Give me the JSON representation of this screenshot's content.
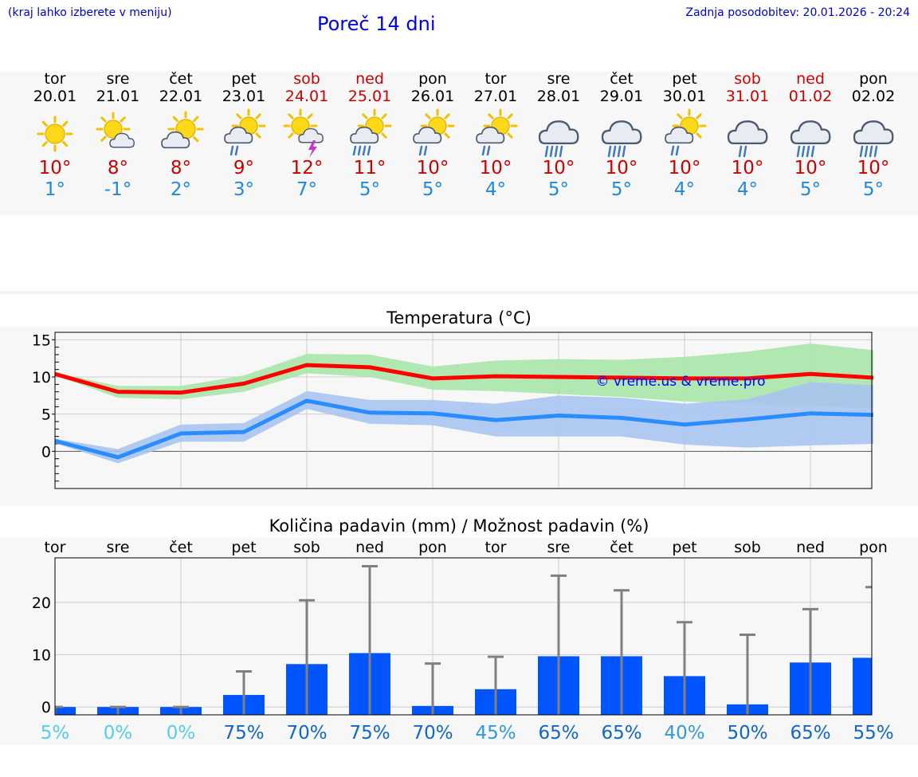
{
  "header": {
    "hint": "(kraj lahko izberete v meniju)",
    "title": "Poreč 14 dni",
    "updated": "Zadnja posodobitev: 20.01.2026 - 20:24"
  },
  "colors": {
    "max_temp": "#cc0000",
    "min_temp": "#2288dd",
    "weekend": "#cc0000",
    "bar": "#0055ff",
    "errbar": "#808080",
    "max_band": "#a8e6a8",
    "min_band": "#a9c4f0",
    "max_line": "#ff0000",
    "min_line": "#2a8cff"
  },
  "forecast": [
    {
      "dow": "tor",
      "date": "20.01",
      "weekend": false,
      "icon": "sunny-icon",
      "tmax": "10°",
      "tmin": "1°"
    },
    {
      "dow": "sre",
      "date": "21.01",
      "weekend": false,
      "icon": "sun-cloud-icon",
      "tmax": "8°",
      "tmin": "-1°"
    },
    {
      "dow": "čet",
      "date": "22.01",
      "weekend": false,
      "icon": "cloud-sun-icon",
      "tmax": "8°",
      "tmin": "2°"
    },
    {
      "dow": "pet",
      "date": "23.01",
      "weekend": false,
      "icon": "sun-cloud-rain-icon",
      "tmax": "9°",
      "tmin": "3°"
    },
    {
      "dow": "sob",
      "date": "24.01",
      "weekend": true,
      "icon": "sun-cloud-thunder-icon",
      "tmax": "12°",
      "tmin": "7°"
    },
    {
      "dow": "ned",
      "date": "25.01",
      "weekend": true,
      "icon": "sun-cloud-heavy-rain-icon",
      "tmax": "11°",
      "tmin": "5°"
    },
    {
      "dow": "pon",
      "date": "26.01",
      "weekend": false,
      "icon": "sun-cloud-rain-icon",
      "tmax": "10°",
      "tmin": "5°"
    },
    {
      "dow": "tor",
      "date": "27.01",
      "weekend": false,
      "icon": "sun-cloud-rain-icon",
      "tmax": "10°",
      "tmin": "4°"
    },
    {
      "dow": "sre",
      "date": "28.01",
      "weekend": false,
      "icon": "cloud-heavy-rain-icon",
      "tmax": "10°",
      "tmin": "5°"
    },
    {
      "dow": "čet",
      "date": "29.01",
      "weekend": false,
      "icon": "cloud-heavy-rain-icon",
      "tmax": "10°",
      "tmin": "5°"
    },
    {
      "dow": "pet",
      "date": "30.01",
      "weekend": false,
      "icon": "sun-cloud-rain-icon",
      "tmax": "10°",
      "tmin": "4°"
    },
    {
      "dow": "sob",
      "date": "31.01",
      "weekend": true,
      "icon": "cloud-rain-icon",
      "tmax": "10°",
      "tmin": "4°"
    },
    {
      "dow": "ned",
      "date": "01.02",
      "weekend": true,
      "icon": "cloud-heavy-rain-icon",
      "tmax": "10°",
      "tmin": "5°"
    },
    {
      "dow": "pon",
      "date": "02.02",
      "weekend": false,
      "icon": "cloud-heavy-rain-icon",
      "tmax": "10°",
      "tmin": "5°"
    }
  ],
  "chart_data": [
    {
      "type": "line",
      "title": "Temperatura (°C)",
      "xlabel": "",
      "ylabel": "",
      "ylim": [
        -5,
        16
      ],
      "yticks": [
        0,
        5,
        10,
        15
      ],
      "grid": true,
      "x": [
        0,
        1,
        2,
        3,
        4,
        5,
        6,
        7,
        8,
        9,
        10,
        11,
        12,
        13
      ],
      "watermark": "© vreme.us & vreme.pro",
      "series": [
        {
          "name": "max",
          "values": [
            10.4,
            8.0,
            7.9,
            9.1,
            11.6,
            11.3,
            9.8,
            10.1,
            10.0,
            9.9,
            9.8,
            9.8,
            10.4,
            9.9
          ],
          "low": [
            10.2,
            7.2,
            7.0,
            8.0,
            10.5,
            10.0,
            8.3,
            8.1,
            7.7,
            7.3,
            6.7,
            6.3,
            6.1,
            5.8
          ],
          "high": [
            10.6,
            8.8,
            8.8,
            10.2,
            13.1,
            13.0,
            11.4,
            12.2,
            12.4,
            12.3,
            12.7,
            13.4,
            14.5,
            13.6
          ]
        },
        {
          "name": "min",
          "values": [
            1.4,
            -0.8,
            2.4,
            2.6,
            6.8,
            5.2,
            5.1,
            4.2,
            4.8,
            4.5,
            3.6,
            4.3,
            5.1,
            4.9
          ],
          "low": [
            1.1,
            -1.6,
            1.3,
            1.3,
            5.7,
            3.7,
            3.5,
            2.0,
            2.0,
            2.0,
            0.9,
            0.5,
            0.8,
            1.0
          ],
          "high": [
            1.7,
            0.3,
            3.6,
            3.8,
            8.1,
            6.9,
            6.9,
            6.4,
            7.5,
            7.2,
            6.4,
            7.0,
            9.3,
            8.9
          ]
        }
      ]
    },
    {
      "type": "bar",
      "title": "Količina padavin (mm) / Možnost padavin (%)",
      "categories": [
        "tor",
        "sre",
        "čet",
        "pet",
        "sob",
        "ned",
        "pon",
        "tor",
        "sre",
        "čet",
        "pet",
        "sob",
        "ned",
        "pon"
      ],
      "values": [
        0,
        0,
        0,
        2.3,
        8.2,
        10.3,
        0.2,
        3.4,
        9.7,
        9.7,
        5.9,
        0.5,
        8.5,
        9.4
      ],
      "error_high": [
        0,
        0,
        0,
        6.8,
        20.4,
        26.9,
        8.3,
        9.6,
        25.1,
        22.3,
        16.2,
        13.8,
        18.7,
        22.9
      ],
      "ylim": [
        -1.5,
        28.5
      ],
      "yticks": [
        0,
        10,
        20
      ],
      "grid": true,
      "chance": [
        "5%",
        "0%",
        "0%",
        "75%",
        "70%",
        "75%",
        "70%",
        "45%",
        "65%",
        "65%",
        "40%",
        "50%",
        "65%",
        "55%"
      ],
      "chance_colors": [
        "#55ccee",
        "#55ccee",
        "#55ccee",
        "#1166cc",
        "#1166cc",
        "#1166cc",
        "#1166cc",
        "#3399dd",
        "#1166cc",
        "#1166cc",
        "#3399dd",
        "#1166cc",
        "#1166cc",
        "#1166cc"
      ]
    }
  ]
}
